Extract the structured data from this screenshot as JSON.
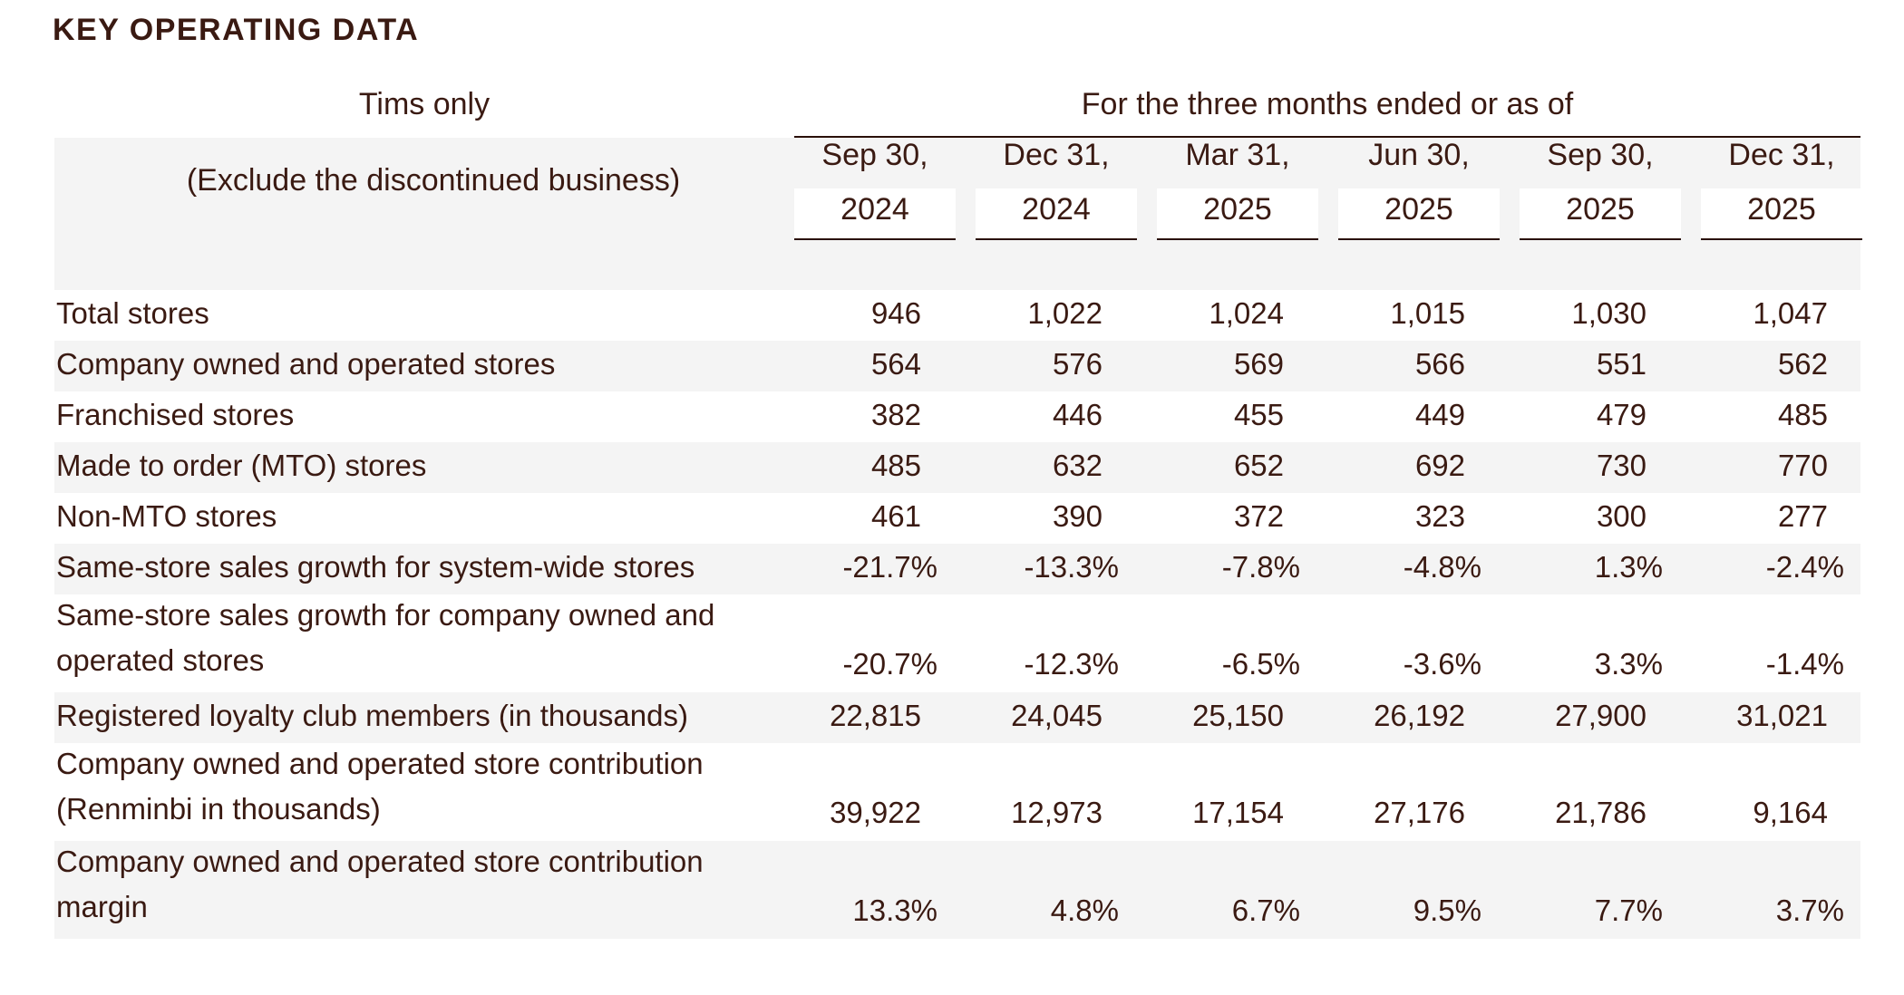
{
  "title": "KEY OPERATING DATA",
  "header": {
    "left_top": "Tims only",
    "left_sub": "(Exclude the discontinued business)",
    "right_top": "For the three months ended or as of",
    "columns": [
      {
        "line1": "Sep 30,",
        "line2": "2024"
      },
      {
        "line1": "Dec 31,",
        "line2": "2024"
      },
      {
        "line1": "Mar 31,",
        "line2": "2025"
      },
      {
        "line1": "Jun 30,",
        "line2": "2025"
      },
      {
        "line1": "Sep 30,",
        "line2": "2025"
      },
      {
        "line1": "Dec 31,",
        "line2": "2025"
      }
    ]
  },
  "rows": [
    {
      "label": [
        "Total stores"
      ],
      "values": [
        "946",
        "1,022",
        "1,024",
        "1,015",
        "1,030",
        "1,047"
      ],
      "type": "num"
    },
    {
      "label": [
        "Company owned and operated stores"
      ],
      "values": [
        "564",
        "576",
        "569",
        "566",
        "551",
        "562"
      ],
      "type": "num"
    },
    {
      "label": [
        "Franchised stores"
      ],
      "values": [
        "382",
        "446",
        "455",
        "449",
        "479",
        "485"
      ],
      "type": "num"
    },
    {
      "label": [
        "Made to order (MTO) stores"
      ],
      "values": [
        "485",
        "632",
        "652",
        "692",
        "730",
        "770"
      ],
      "type": "num"
    },
    {
      "label": [
        "Non-MTO stores"
      ],
      "values": [
        "461",
        "390",
        "372",
        "323",
        "300",
        "277"
      ],
      "type": "num"
    },
    {
      "label": [
        "Same-store sales growth for system-wide stores"
      ],
      "values": [
        "-21.7%",
        "-13.3%",
        "-7.8%",
        "-4.8%",
        "1.3%",
        "-2.4%"
      ],
      "type": "pct"
    },
    {
      "label": [
        "Same-store sales growth for company owned and",
        "operated stores"
      ],
      "values": [
        "-20.7%",
        "-12.3%",
        "-6.5%",
        "-3.6%",
        "3.3%",
        "-1.4%"
      ],
      "type": "pct"
    },
    {
      "label": [
        "Registered loyalty club members (in thousands)"
      ],
      "values": [
        "22,815",
        "24,045",
        "25,150",
        "26,192",
        "27,900",
        "31,021"
      ],
      "type": "num"
    },
    {
      "label": [
        "Company owned and operated store contribution",
        "(Renminbi in thousands)"
      ],
      "values": [
        "39,922",
        "12,973",
        "17,154",
        "27,176",
        "21,786",
        "9,164"
      ],
      "type": "num"
    },
    {
      "label": [
        "Company owned and operated store contribution",
        "margin"
      ],
      "values": [
        "13.3%",
        "4.8%",
        "6.7%",
        "9.5%",
        "7.7%",
        "3.7%"
      ],
      "type": "pct"
    }
  ]
}
